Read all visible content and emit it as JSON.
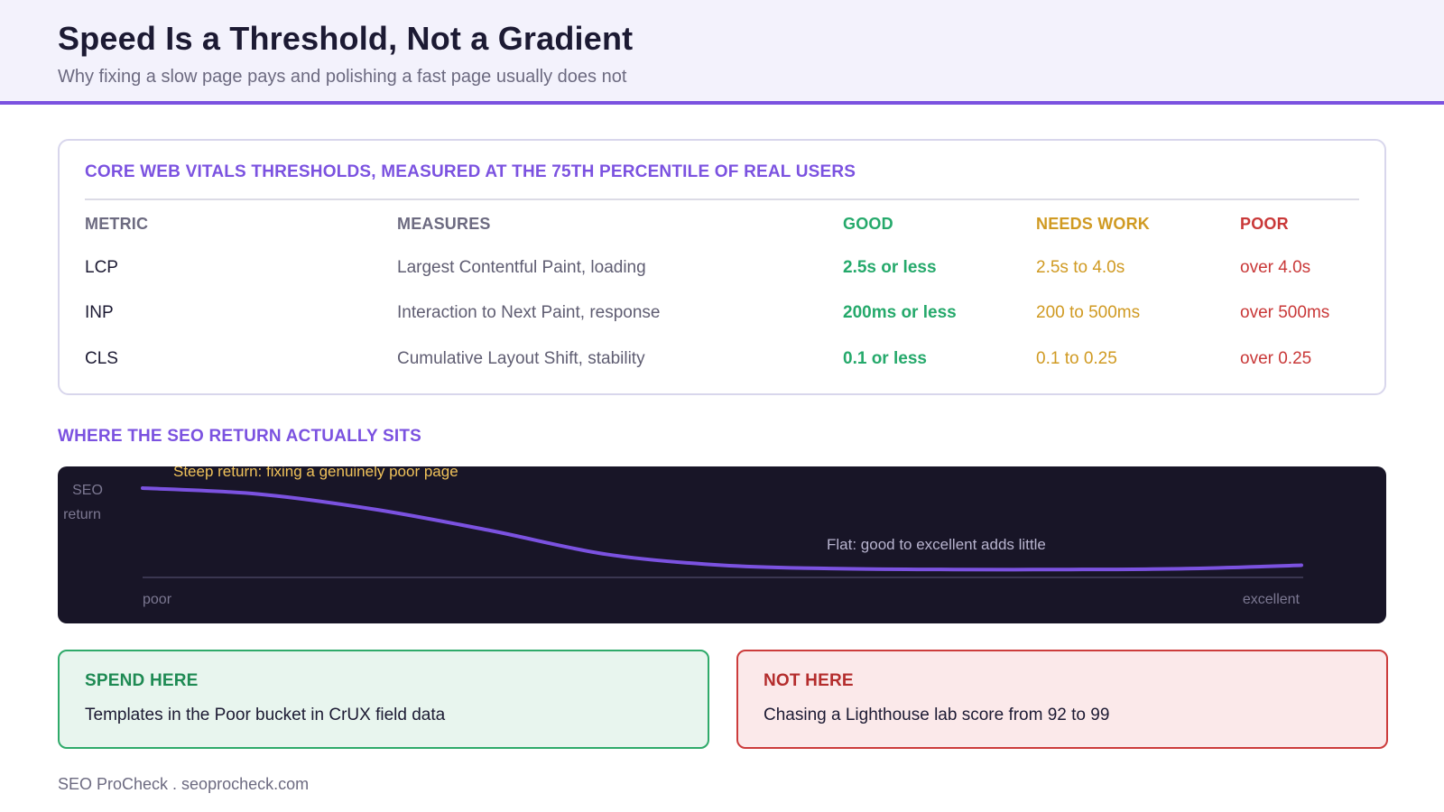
{
  "header": {
    "title": "Speed Is a Threshold, Not a Gradient",
    "subtitle": "Why fixing a slow page pays and polishing a fast page usually does not"
  },
  "thresholds": {
    "heading": "CORE WEB VITALS THRESHOLDS, MEASURED AT THE 75TH PERCENTILE OF REAL USERS",
    "columns": [
      "METRIC",
      "MEASURES",
      "GOOD",
      "NEEDS WORK",
      "POOR"
    ],
    "rows": [
      {
        "metric": "LCP",
        "measures": "Largest Contentful Paint, loading",
        "good": "2.5s or less",
        "needs": "2.5s to 4.0s",
        "poor": "over 4.0s"
      },
      {
        "metric": "INP",
        "measures": "Interaction to Next Paint, response",
        "good": "200ms or less",
        "needs": "200 to 500ms",
        "poor": "over 500ms"
      },
      {
        "metric": "CLS",
        "measures": "Cumulative Layout Shift, stability",
        "good": "0.1 or less",
        "needs": "0.1 to 0.25",
        "poor": "over 0.25"
      }
    ],
    "colors": {
      "good": "#25a96b",
      "needs": "#d09a22",
      "poor": "#c93838"
    }
  },
  "return_section": {
    "heading": "WHERE THE SEO RETURN ACTUALLY SITS"
  },
  "chart_data": {
    "type": "line",
    "y_label_lines": [
      "SEO",
      "return"
    ],
    "x_start_label": "poor",
    "x_end_label": "excellent",
    "annotations": {
      "steep": "Steep return: fixing a genuinely poor page",
      "flat": "Flat: good to excellent adds little"
    },
    "x": [
      0,
      0.1,
      0.2,
      0.3,
      0.4,
      0.5,
      0.6,
      0.7,
      0.8,
      0.9,
      1.0
    ],
    "y": [
      1.0,
      0.93,
      0.75,
      0.5,
      0.22,
      0.09,
      0.05,
      0.04,
      0.04,
      0.05,
      0.09
    ],
    "xlim": [
      0,
      1
    ],
    "ylim": [
      0,
      1
    ],
    "line_color": "#7b52e0"
  },
  "boxes": {
    "spend": {
      "label": "SPEND HERE",
      "text": "Templates in the Poor bucket in CrUX field data"
    },
    "not": {
      "label": "NOT HERE",
      "text": "Chasing a Lighthouse lab score from 92 to 99"
    }
  },
  "footer": {
    "text": "SEO ProCheck . seoprocheck.com"
  }
}
